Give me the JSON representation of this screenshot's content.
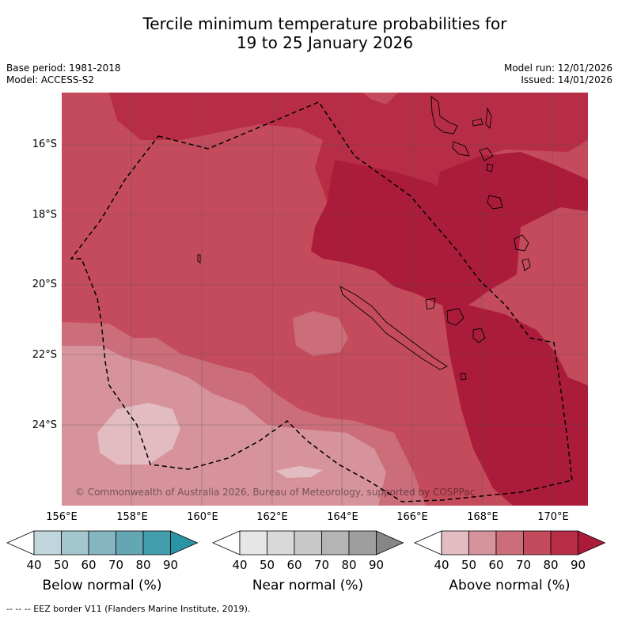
{
  "title_line1": "Tercile minimum temperature probabilities for",
  "title_line2": "19 to 25 January 2026",
  "meta": {
    "base_period": "Base period: 1981-2018",
    "model": "Model: ACCESS-S2",
    "model_run": "Model run: 12/01/2026",
    "issued": "Issued: 14/01/2026"
  },
  "map": {
    "lat_labels": [
      "16°S",
      "18°S",
      "20°S",
      "22°S",
      "24°S"
    ],
    "lon_labels": [
      "156°E",
      "158°E",
      "160°E",
      "162°E",
      "164°E",
      "166°E",
      "168°E",
      "170°E"
    ],
    "copyright": "© Commonwealth of Australia 2026, Bureau of Meteorology, supported by COSPPac",
    "dominant_category": "Above normal",
    "colors": {
      "above_50_60": "#d6939b",
      "above_60_70": "#cc6d7a",
      "above_70_80": "#c44b5c",
      "above_80_90": "#b82d46",
      "above_90": "#ab1c3a",
      "above_light": "#e4c2c7"
    }
  },
  "colorbars": [
    {
      "name": "Below normal (%)",
      "ticks": [
        "40",
        "50",
        "60",
        "70",
        "80",
        "90"
      ],
      "colors": [
        "#ffffff",
        "#c1d6dc",
        "#a4c7ce",
        "#85b5c0",
        "#64a6b3",
        "#449dad",
        "#2b95a7"
      ]
    },
    {
      "name": "Near normal (%)",
      "ticks": [
        "40",
        "50",
        "60",
        "70",
        "80",
        "90"
      ],
      "colors": [
        "#ffffff",
        "#e6e6e6",
        "#d9d9d9",
        "#c8c8c8",
        "#b4b4b4",
        "#9e9e9e",
        "#868686"
      ]
    },
    {
      "name": "Above normal (%)",
      "ticks": [
        "40",
        "50",
        "60",
        "70",
        "80",
        "90"
      ],
      "colors": [
        "#ffffff",
        "#e2bcc1",
        "#d6939b",
        "#cc6d7a",
        "#c44b5c",
        "#b82d46",
        "#ab1c3a"
      ]
    }
  ],
  "footer": "--  --  -- EEZ border V11 (Flanders Marine Institute, 2019)."
}
